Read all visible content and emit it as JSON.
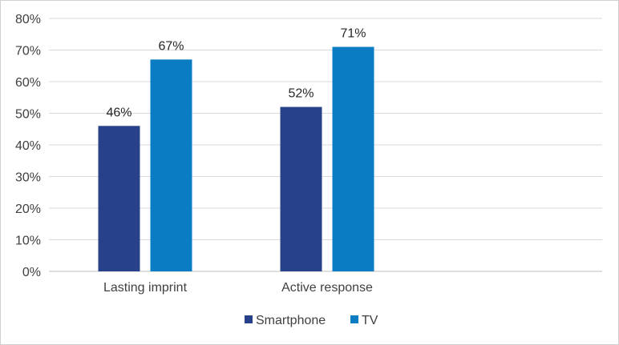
{
  "chart_data": {
    "type": "bar",
    "categories": [
      "Lasting imprint",
      "Active response"
    ],
    "series": [
      {
        "name": "Smartphone",
        "values": [
          46,
          52
        ],
        "labels": [
          "46%",
          "52%"
        ],
        "color": "#27418a"
      },
      {
        "name": "TV",
        "values": [
          67,
          71
        ],
        "labels": [
          "67%",
          "71%"
        ],
        "color": "#0a7cc4"
      }
    ],
    "ylim": [
      0,
      80
    ],
    "yticks": [
      0,
      10,
      20,
      30,
      40,
      50,
      60,
      70,
      80
    ],
    "ytick_labels": [
      "0%",
      "10%",
      "20%",
      "30%",
      "40%",
      "50%",
      "60%",
      "70%",
      "80%"
    ],
    "grid": true,
    "legend": "bottom-center"
  }
}
